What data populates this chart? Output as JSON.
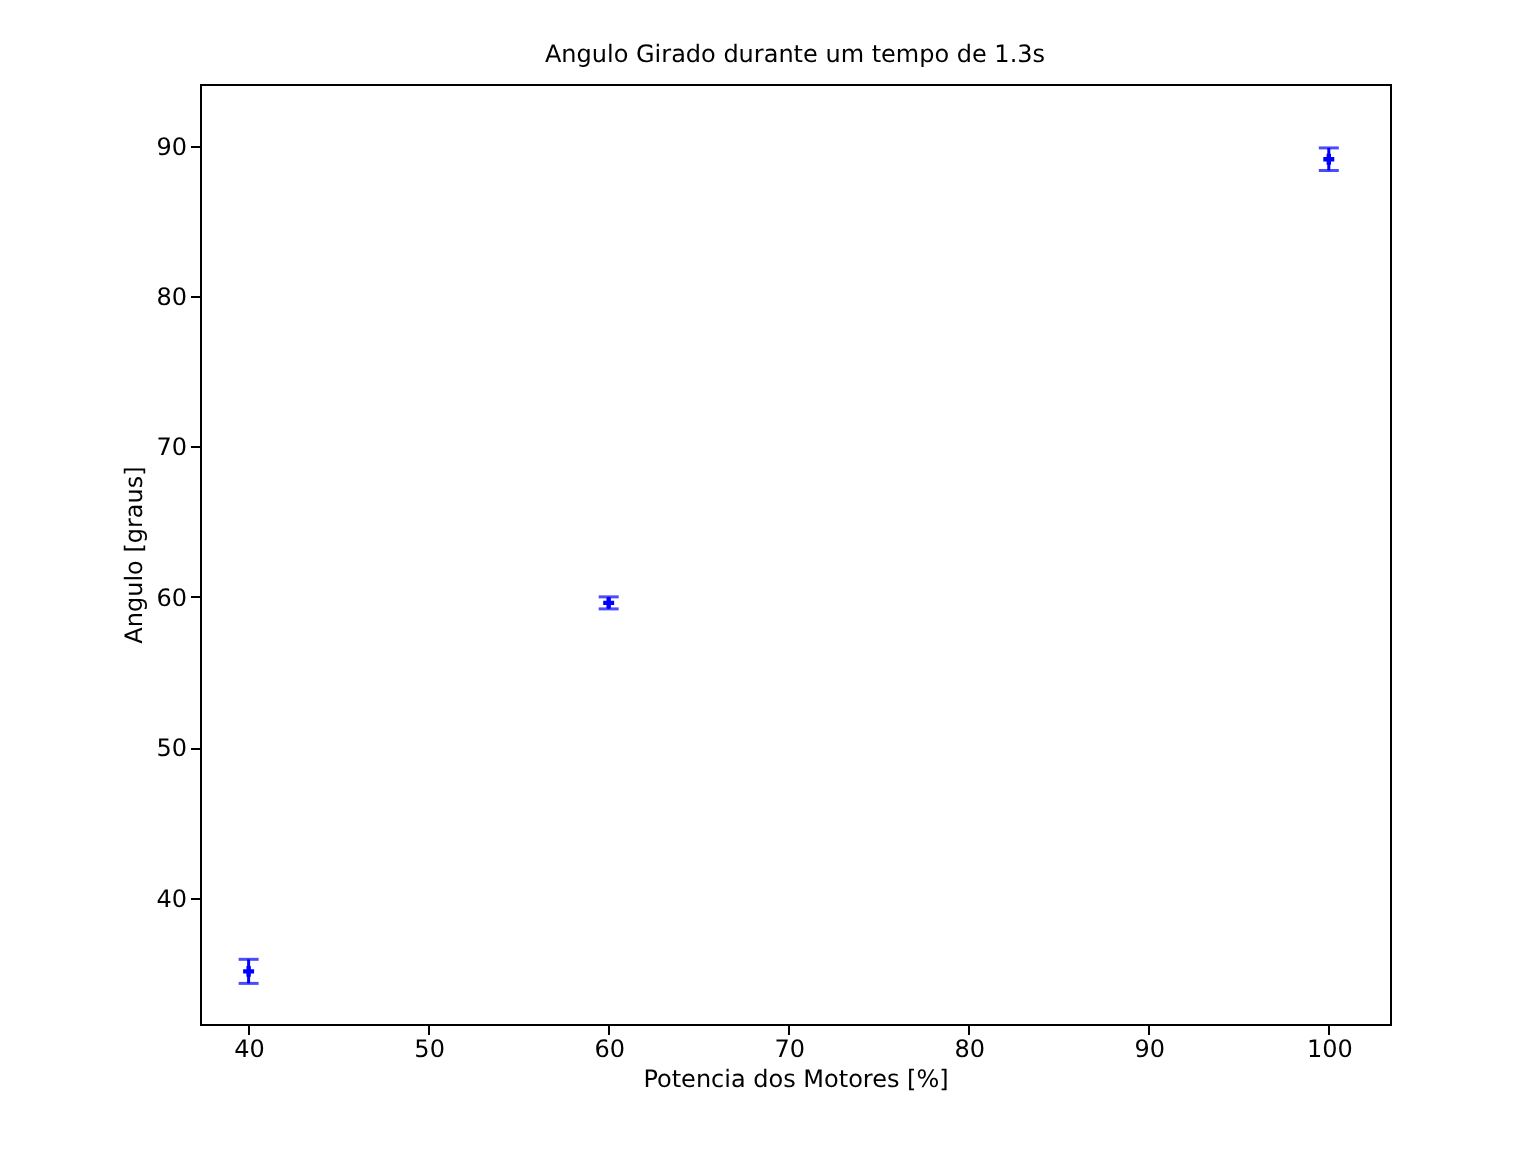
{
  "chart_data": {
    "type": "scatter",
    "title": "Angulo Girado durante um tempo de 1.3s",
    "xlabel": "Potencia dos Motores [%]",
    "ylabel": "Angulo [graus]",
    "x": [
      40,
      60,
      100
    ],
    "series": [
      {
        "color": "#0000ff",
        "values": [
          35.1,
          59.6,
          89.1
        ],
        "errors": [
          0.8,
          0.4,
          0.75
        ]
      }
    ],
    "xlim": [
      37.3,
      103.4
    ],
    "xticks": [
      40,
      50,
      60,
      70,
      80,
      90,
      100
    ],
    "ylim": [
      31.6,
      94.1
    ],
    "yticks": [
      40,
      50,
      60,
      70,
      80,
      90
    ],
    "grid": false,
    "marker": "cross"
  }
}
